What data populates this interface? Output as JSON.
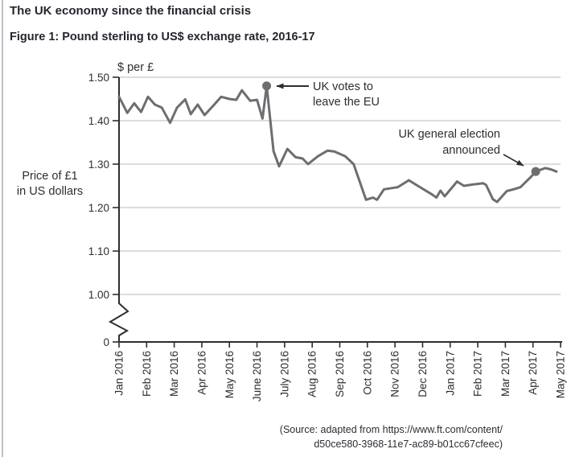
{
  "page": {
    "title": "The UK economy since the financial crisis",
    "figure_caption": "Figure 1: Pound sterling to US$ exchange rate, 2016-17",
    "source_line1": "(Source: adapted from https://www.ft.com/content/",
    "source_line2": "d50ce580-3968-11e7-ac89-b01cc67cfeec)"
  },
  "chart_data": {
    "type": "line",
    "title": "Pound sterling to US$ exchange rate, 2016-17",
    "unit_label": "$ per £",
    "ylabel_line1": "Price of £1",
    "ylabel_line2": "in US dollars",
    "x_unit": "months, Jan 2016 to May 2017",
    "x_tick_labels": [
      "Jan 2016",
      "Feb 2016",
      "Mar 2016",
      "Apr 2016",
      "May 2016",
      "June 2016",
      "July 2016",
      "Aug 2016",
      "Sep 2016",
      "Oct 2016",
      "Nov 2016",
      "Dec 2016",
      "Jan 2017",
      "Feb 2017",
      "Mar 2017",
      "Apr 2017",
      "May 2017"
    ],
    "y_tick_values": [
      1.5,
      1.4,
      1.3,
      1.2,
      1.1,
      1.0
    ],
    "y_tick_labels": [
      "1.50",
      "1.40",
      "1.30",
      "1.20",
      "1.10",
      "1.00"
    ],
    "y_origin_label": "0",
    "axis_break": true,
    "ylim_display": [
      1.0,
      1.5
    ],
    "grid": true,
    "legend": "none",
    "series": [
      {
        "name": "Pound sterling to US$ exchange rate",
        "points": [
          [
            0,
            1.455
          ],
          [
            0.3,
            1.418
          ],
          [
            0.55,
            1.44
          ],
          [
            0.8,
            1.42
          ],
          [
            1.05,
            1.455
          ],
          [
            1.3,
            1.437
          ],
          [
            1.55,
            1.43
          ],
          [
            1.85,
            1.395
          ],
          [
            2.1,
            1.43
          ],
          [
            2.4,
            1.449
          ],
          [
            2.6,
            1.415
          ],
          [
            2.85,
            1.437
          ],
          [
            3.1,
            1.413
          ],
          [
            3.45,
            1.437
          ],
          [
            3.7,
            1.455
          ],
          [
            4.0,
            1.45
          ],
          [
            4.25,
            1.448
          ],
          [
            4.45,
            1.47
          ],
          [
            4.75,
            1.446
          ],
          [
            5.0,
            1.448
          ],
          [
            5.2,
            1.405
          ],
          [
            5.35,
            1.48
          ],
          [
            5.6,
            1.33
          ],
          [
            5.8,
            1.295
          ],
          [
            6.1,
            1.335
          ],
          [
            6.4,
            1.316
          ],
          [
            6.65,
            1.313
          ],
          [
            6.85,
            1.3
          ],
          [
            7.2,
            1.318
          ],
          [
            7.55,
            1.331
          ],
          [
            7.8,
            1.329
          ],
          [
            8.2,
            1.318
          ],
          [
            8.5,
            1.3
          ],
          [
            8.95,
            1.218
          ],
          [
            9.2,
            1.223
          ],
          [
            9.35,
            1.218
          ],
          [
            9.6,
            1.242
          ],
          [
            9.9,
            1.245
          ],
          [
            10.1,
            1.247
          ],
          [
            10.5,
            1.263
          ],
          [
            10.75,
            1.253
          ],
          [
            11.35,
            1.23
          ],
          [
            11.5,
            1.223
          ],
          [
            11.65,
            1.239
          ],
          [
            11.8,
            1.226
          ],
          [
            12.25,
            1.26
          ],
          [
            12.5,
            1.25
          ],
          [
            12.8,
            1.253
          ],
          [
            13.2,
            1.256
          ],
          [
            13.3,
            1.252
          ],
          [
            13.55,
            1.219
          ],
          [
            13.7,
            1.213
          ],
          [
            14.05,
            1.238
          ],
          [
            14.35,
            1.243
          ],
          [
            14.55,
            1.247
          ],
          [
            14.9,
            1.269
          ],
          [
            15.1,
            1.283
          ],
          [
            15.45,
            1.291
          ],
          [
            15.65,
            1.288
          ],
          [
            15.85,
            1.283
          ]
        ]
      }
    ],
    "annotations": [
      {
        "lines": [
          "UK votes to",
          "leave the EU"
        ],
        "point": [
          5.35,
          1.48
        ]
      },
      {
        "lines": [
          "UK general election",
          "announced"
        ],
        "point": [
          15.1,
          1.283
        ]
      }
    ],
    "colors": {
      "line": "#6d6e71",
      "marker": "#6d6e71",
      "grid": "#b9b9b9",
      "axis": "#2e2d34",
      "text": "#2e2d34"
    }
  }
}
